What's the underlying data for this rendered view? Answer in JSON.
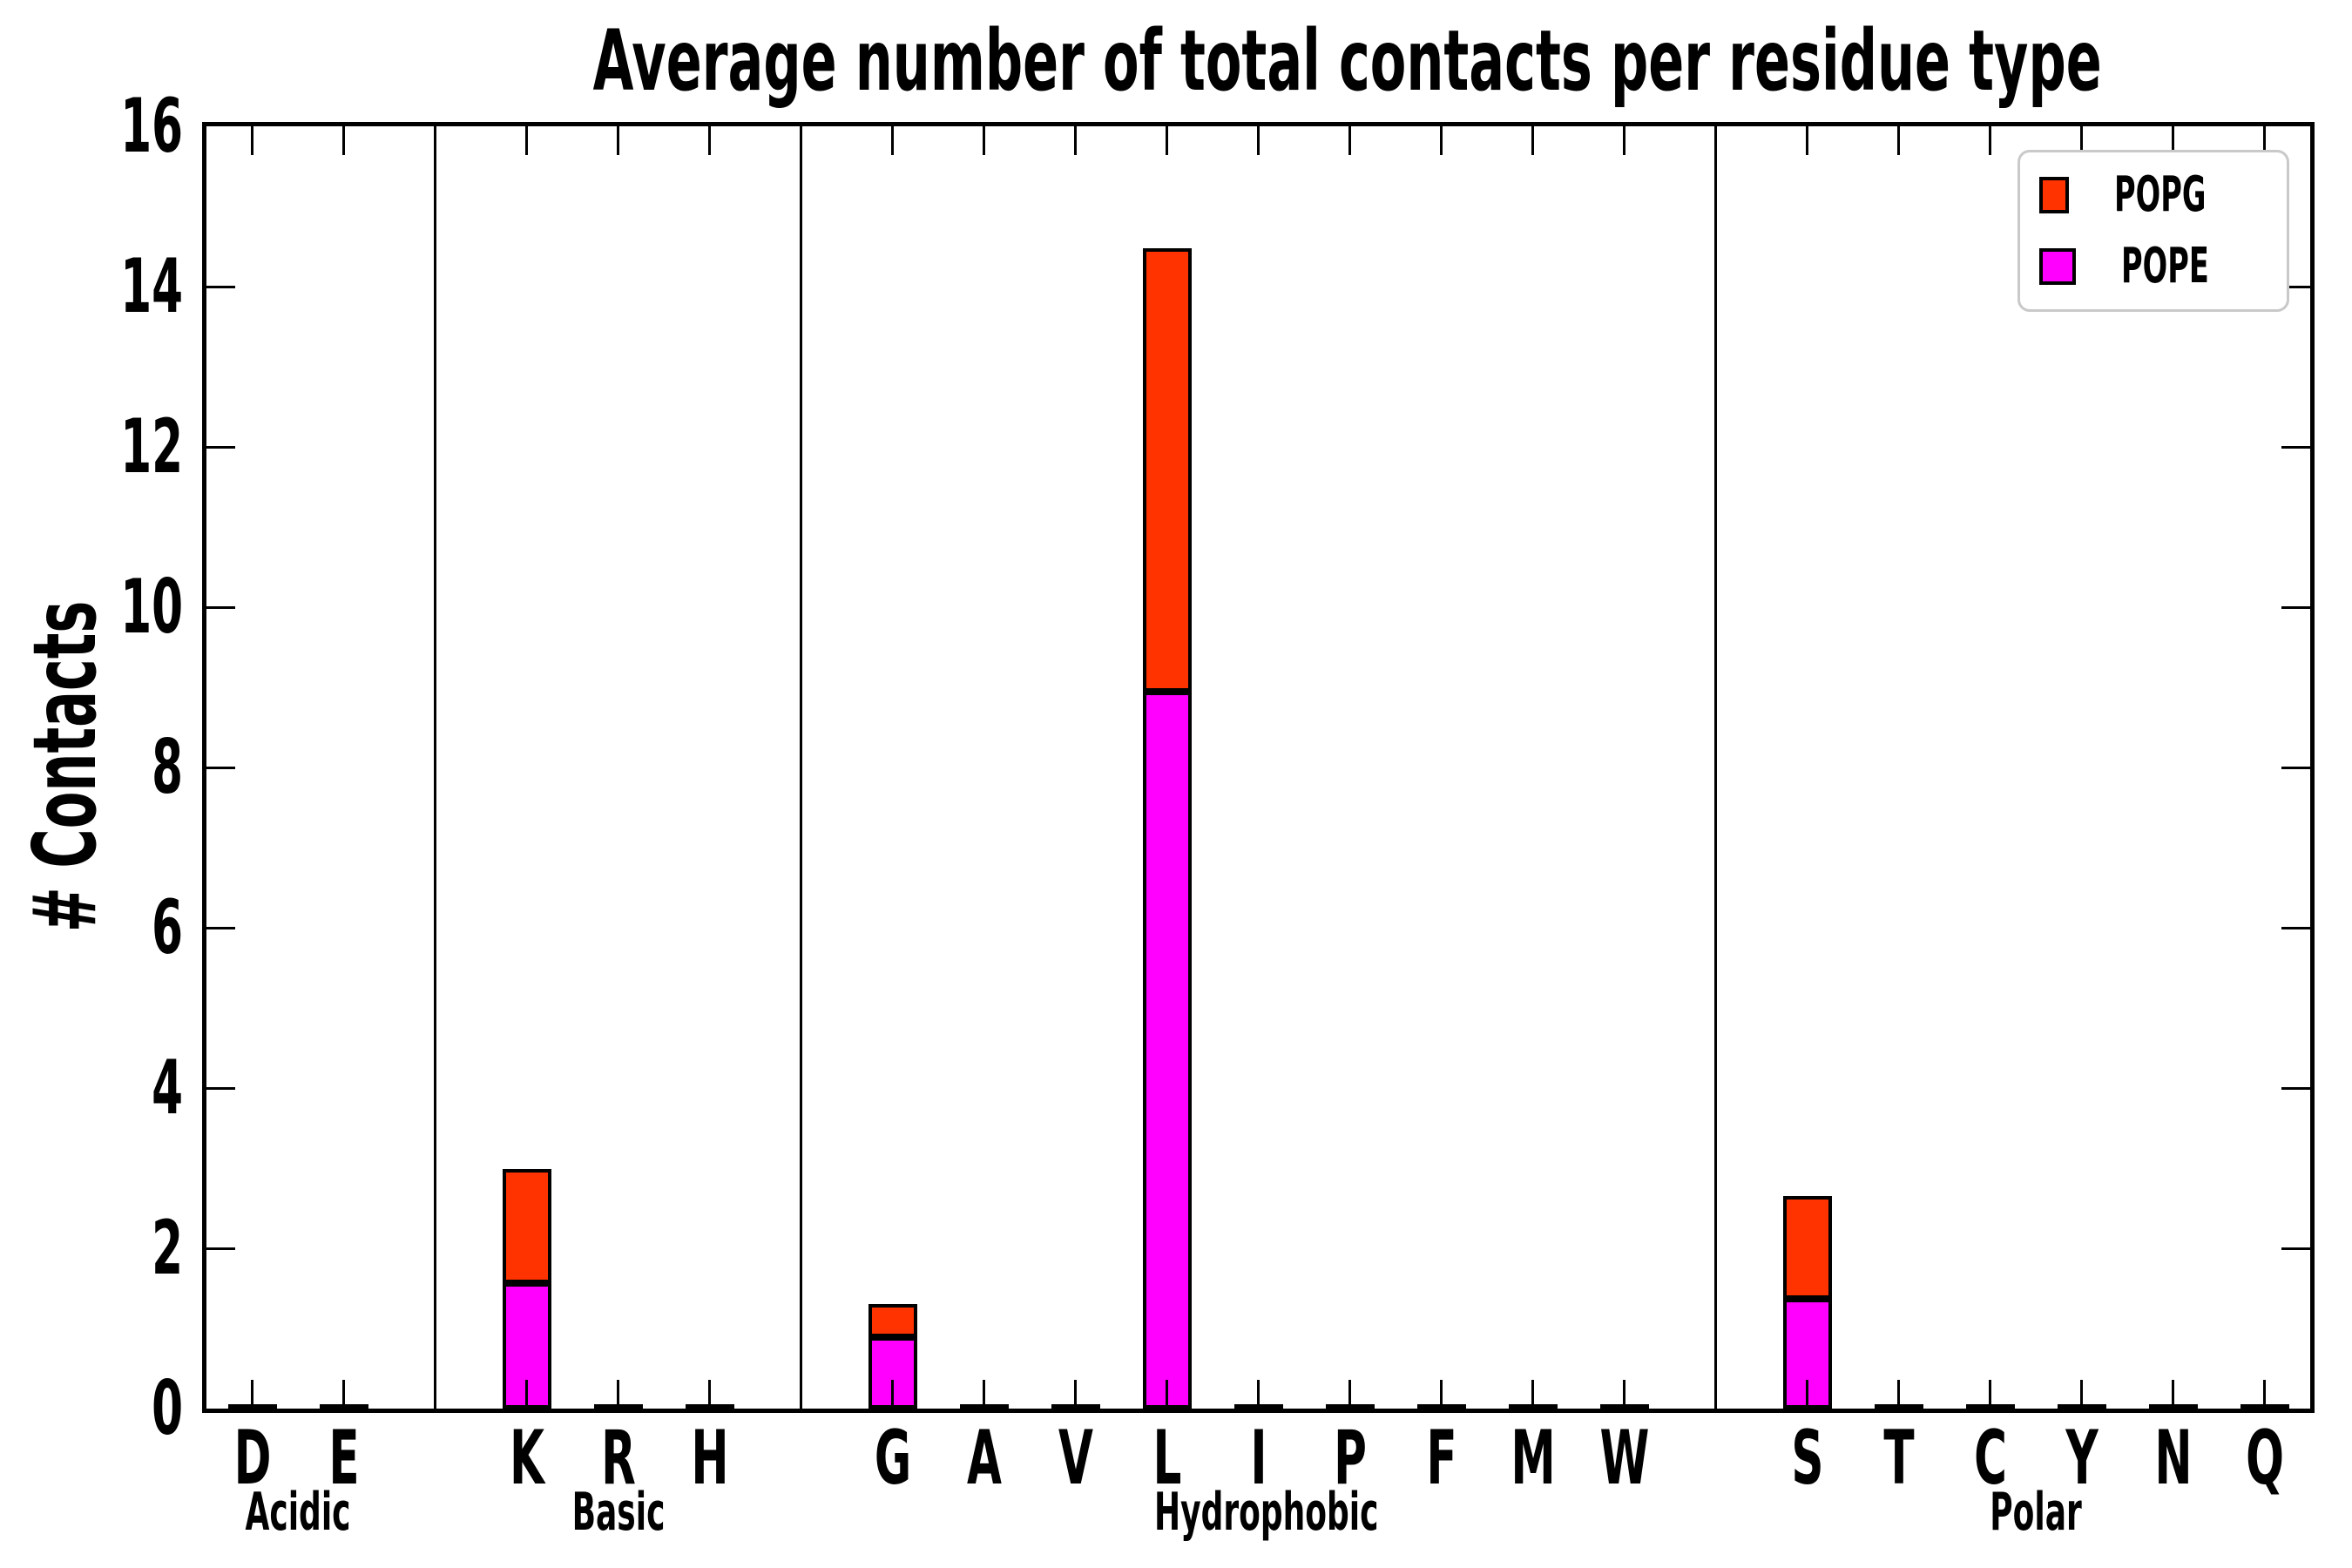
{
  "title": "Average number of total contacts per residue type",
  "axes": {
    "ylabel": "# Contacts",
    "yticks": [
      0,
      2,
      4,
      6,
      8,
      10,
      12,
      14,
      16
    ],
    "xgroups": [
      "Acidic",
      "Basic",
      "Hydrophobic",
      "Polar"
    ]
  },
  "legend": [
    {
      "label": "POPG",
      "color": "#ff3300"
    },
    {
      "label": "POPE",
      "color": "#ff00ff"
    }
  ],
  "colors": {
    "popg": "#ff3300",
    "pope": "#ff00ff",
    "axis": "#000000",
    "legend_border": "#c9c9c9",
    "background": "#ffffff"
  },
  "chart_data": {
    "type": "bar",
    "stacked": true,
    "title": "Average number of total contacts per residue type",
    "xlabel": "",
    "ylabel": "# Contacts",
    "ylim": [
      0,
      16
    ],
    "grid": false,
    "legend_position": "upper right",
    "groups": [
      {
        "name": "Acidic",
        "categories": [
          "D",
          "E"
        ]
      },
      {
        "name": "Basic",
        "categories": [
          "K",
          "R",
          "H"
        ]
      },
      {
        "name": "Hydrophobic",
        "categories": [
          "G",
          "A",
          "V",
          "L",
          "I",
          "P",
          "F",
          "M",
          "W"
        ]
      },
      {
        "name": "Polar",
        "categories": [
          "S",
          "T",
          "C",
          "Y",
          "N",
          "Q"
        ]
      }
    ],
    "categories": [
      "D",
      "E",
      "K",
      "R",
      "H",
      "G",
      "A",
      "V",
      "L",
      "I",
      "P",
      "F",
      "M",
      "W",
      "S",
      "T",
      "C",
      "Y",
      "N",
      "Q"
    ],
    "series": [
      {
        "name": "POPE",
        "color": "#ff00ff",
        "values": [
          0.02,
          0.02,
          1.56,
          0.02,
          0.02,
          0.89,
          0.02,
          0.02,
          8.95,
          0.02,
          0.02,
          0.02,
          0.02,
          0.02,
          1.37,
          0.02,
          0.02,
          0.02,
          0.02,
          0.02
        ]
      },
      {
        "name": "POPG",
        "color": "#ff3300",
        "values": [
          0.02,
          0.02,
          1.43,
          0.02,
          0.02,
          0.41,
          0.02,
          0.02,
          5.53,
          0.02,
          0.02,
          0.02,
          0.02,
          0.02,
          1.28,
          0.02,
          0.02,
          0.02,
          0.02,
          0.02
        ]
      }
    ]
  }
}
